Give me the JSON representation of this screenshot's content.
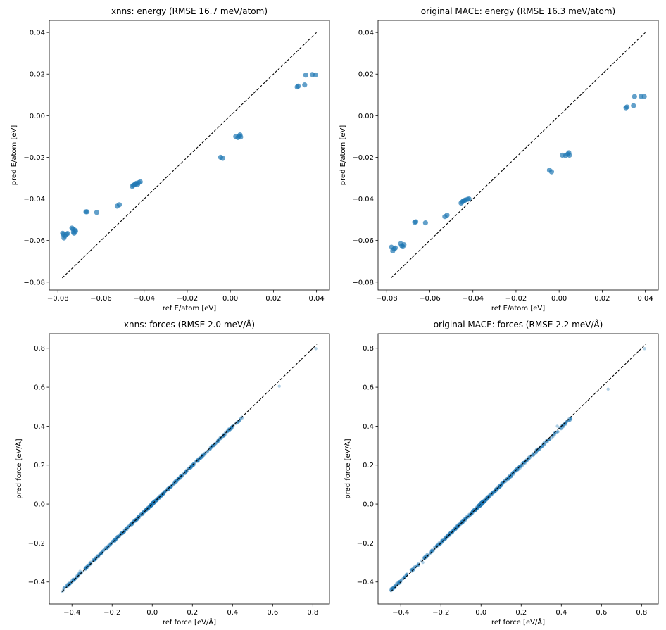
{
  "panels": [
    {
      "id": "xnns-energy",
      "chart_data": {
        "type": "scatter",
        "title": "xnns: energy (RMSE 16.7 meV/atom)",
        "xlabel": "ref E/atom [eV]",
        "ylabel": "pred E/atom [eV]",
        "xlim": [
          -0.084,
          0.046
        ],
        "ylim": [
          -0.0838,
          0.0458
        ],
        "xticks": [
          -0.08,
          -0.06,
          -0.04,
          -0.02,
          0.0,
          0.02,
          0.04
        ],
        "xtick_labels": [
          "−0.08",
          "−0.06",
          "−0.04",
          "−0.02",
          "0.00",
          "0.02",
          "0.04"
        ],
        "yticks": [
          -0.08,
          -0.06,
          -0.04,
          -0.02,
          0.0,
          0.02,
          0.04
        ],
        "ytick_labels": [
          "−0.08",
          "−0.06",
          "−0.04",
          "−0.02",
          "0.00",
          "0.02",
          "0.04"
        ],
        "diagonal": [
          -0.078,
          0.04
        ],
        "marker": {
          "color": "#1f77b4",
          "opacity": 0.7,
          "size": 3.6
        },
        "grid": false,
        "points": [
          [
            -0.0778,
            -0.0565
          ],
          [
            -0.0775,
            -0.0572
          ],
          [
            -0.0772,
            -0.0588
          ],
          [
            -0.0768,
            -0.0578
          ],
          [
            -0.076,
            -0.057
          ],
          [
            -0.0755,
            -0.0566
          ],
          [
            -0.0735,
            -0.054
          ],
          [
            -0.073,
            -0.0545
          ],
          [
            -0.0728,
            -0.056
          ],
          [
            -0.0725,
            -0.0565
          ],
          [
            -0.0722,
            -0.055
          ],
          [
            -0.0718,
            -0.0555
          ],
          [
            -0.067,
            -0.0462
          ],
          [
            -0.0665,
            -0.0462
          ],
          [
            -0.062,
            -0.0465
          ],
          [
            -0.0525,
            -0.0435
          ],
          [
            -0.0515,
            -0.0428
          ],
          [
            -0.0455,
            -0.034
          ],
          [
            -0.045,
            -0.0335
          ],
          [
            -0.0445,
            -0.0332
          ],
          [
            -0.044,
            -0.0328
          ],
          [
            -0.0435,
            -0.0325
          ],
          [
            -0.043,
            -0.033
          ],
          [
            -0.0425,
            -0.0322
          ],
          [
            -0.0418,
            -0.0318
          ],
          [
            -0.0045,
            -0.02
          ],
          [
            -0.0035,
            -0.0205
          ],
          [
            0.0025,
            -0.01
          ],
          [
            0.0035,
            -0.0105
          ],
          [
            0.004,
            -0.0098
          ],
          [
            0.0045,
            -0.0092
          ],
          [
            0.0048,
            -0.0102
          ],
          [
            0.031,
            0.0138
          ],
          [
            0.0315,
            0.0142
          ],
          [
            0.0345,
            0.0148
          ],
          [
            0.035,
            0.0195
          ],
          [
            0.038,
            0.0198
          ],
          [
            0.0395,
            0.0196
          ]
        ]
      }
    },
    {
      "id": "mace-energy",
      "chart_data": {
        "type": "scatter",
        "title": "original MACE: energy (RMSE 16.3 meV/atom)",
        "xlabel": "ref E/atom [eV]",
        "ylabel": "pred E/atom [eV]",
        "xlim": [
          -0.084,
          0.046
        ],
        "ylim": [
          -0.0838,
          0.0458
        ],
        "xticks": [
          -0.08,
          -0.06,
          -0.04,
          -0.02,
          0.0,
          0.02,
          0.04
        ],
        "xtick_labels": [
          "−0.08",
          "−0.06",
          "−0.04",
          "−0.02",
          "0.00",
          "0.02",
          "0.04"
        ],
        "yticks": [
          -0.08,
          -0.06,
          -0.04,
          -0.02,
          0.0,
          0.02,
          0.04
        ],
        "ytick_labels": [
          "−0.08",
          "−0.06",
          "−0.04",
          "−0.02",
          "0.00",
          "0.02",
          "0.04"
        ],
        "diagonal": [
          -0.078,
          0.04
        ],
        "marker": {
          "color": "#1f77b4",
          "opacity": 0.7,
          "size": 3.6
        },
        "grid": false,
        "points": [
          [
            -0.0778,
            -0.0632
          ],
          [
            -0.0772,
            -0.065
          ],
          [
            -0.0765,
            -0.064
          ],
          [
            -0.076,
            -0.0636
          ],
          [
            -0.0735,
            -0.0615
          ],
          [
            -0.073,
            -0.0625
          ],
          [
            -0.0725,
            -0.063
          ],
          [
            -0.072,
            -0.062
          ],
          [
            -0.067,
            -0.0512
          ],
          [
            -0.0665,
            -0.051
          ],
          [
            -0.062,
            -0.0515
          ],
          [
            -0.053,
            -0.0485
          ],
          [
            -0.052,
            -0.0478
          ],
          [
            -0.0455,
            -0.042
          ],
          [
            -0.045,
            -0.0415
          ],
          [
            -0.0445,
            -0.041
          ],
          [
            -0.044,
            -0.0408
          ],
          [
            -0.0435,
            -0.0405
          ],
          [
            -0.0425,
            -0.0402
          ],
          [
            -0.0418,
            -0.04
          ],
          [
            -0.0045,
            -0.0262
          ],
          [
            -0.0035,
            -0.027
          ],
          [
            0.0015,
            -0.019
          ],
          [
            0.003,
            -0.0192
          ],
          [
            0.004,
            -0.0185
          ],
          [
            0.0045,
            -0.0178
          ],
          [
            0.0048,
            -0.019
          ],
          [
            0.031,
            0.0038
          ],
          [
            0.0315,
            0.0042
          ],
          [
            0.0345,
            0.0048
          ],
          [
            0.035,
            0.0092
          ],
          [
            0.038,
            0.0093
          ],
          [
            0.0395,
            0.0092
          ]
        ]
      }
    },
    {
      "id": "xnns-forces",
      "chart_data": {
        "type": "scatter",
        "title": "xnns: forces (RMSE 2.0 meV/Å)",
        "xlabel": "ref force [eV/Å]",
        "ylabel": "pred force [eV/Å]",
        "xlim": [
          -0.513,
          0.883
        ],
        "ylim": [
          -0.513,
          0.875
        ],
        "xticks": [
          -0.4,
          -0.2,
          0.0,
          0.2,
          0.4,
          0.6,
          0.8
        ],
        "xtick_labels": [
          "−0.4",
          "−0.2",
          "0.0",
          "0.2",
          "0.4",
          "0.6",
          "0.8"
        ],
        "yticks": [
          -0.4,
          -0.2,
          0.0,
          0.2,
          0.4,
          0.6,
          0.8
        ],
        "ytick_labels": [
          "−0.4",
          "−0.2",
          "0.0",
          "0.2",
          "0.4",
          "0.6",
          "0.8"
        ],
        "diagonal": [
          -0.45,
          0.82
        ],
        "marker": {
          "color": "#1f77b4",
          "opacity": 0.35,
          "size": 2.2
        },
        "grid": false,
        "outliers": [
          [
            0.815,
            0.798
          ],
          [
            0.633,
            0.605
          ],
          [
            0.44,
            0.44
          ],
          [
            0.38,
            0.385
          ],
          [
            -0.4,
            -0.4
          ],
          [
            -0.36,
            -0.345
          ]
        ],
        "cloud": {
          "min": -0.45,
          "max": 0.45,
          "count": 700,
          "noise": 0.006
        }
      }
    },
    {
      "id": "mace-forces",
      "chart_data": {
        "type": "scatter",
        "title": "original MACE: forces (RMSE 2.2 meV/Å)",
        "xlabel": "ref force [eV/Å]",
        "ylabel": "pred force [eV/Å]",
        "xlim": [
          -0.513,
          0.883
        ],
        "ylim": [
          -0.513,
          0.875
        ],
        "xticks": [
          -0.4,
          -0.2,
          0.0,
          0.2,
          0.4,
          0.6,
          0.8
        ],
        "xtick_labels": [
          "−0.4",
          "−0.2",
          "0.0",
          "0.2",
          "0.4",
          "0.6",
          "0.8"
        ],
        "yticks": [
          -0.4,
          -0.2,
          0.0,
          0.2,
          0.4,
          0.6,
          0.8
        ],
        "ytick_labels": [
          "−0.4",
          "−0.2",
          "0.0",
          "0.2",
          "0.4",
          "0.6",
          "0.8"
        ],
        "diagonal": [
          -0.45,
          0.82
        ],
        "marker": {
          "color": "#1f77b4",
          "opacity": 0.35,
          "size": 2.2
        },
        "grid": false,
        "outliers": [
          [
            0.815,
            0.798
          ],
          [
            0.633,
            0.59
          ],
          [
            0.44,
            0.44
          ],
          [
            0.38,
            0.4
          ],
          [
            -0.44,
            -0.44
          ],
          [
            -0.4,
            -0.4
          ],
          [
            -0.29,
            -0.3
          ]
        ],
        "cloud": {
          "min": -0.45,
          "max": 0.45,
          "count": 700,
          "noise": 0.007
        }
      }
    }
  ]
}
